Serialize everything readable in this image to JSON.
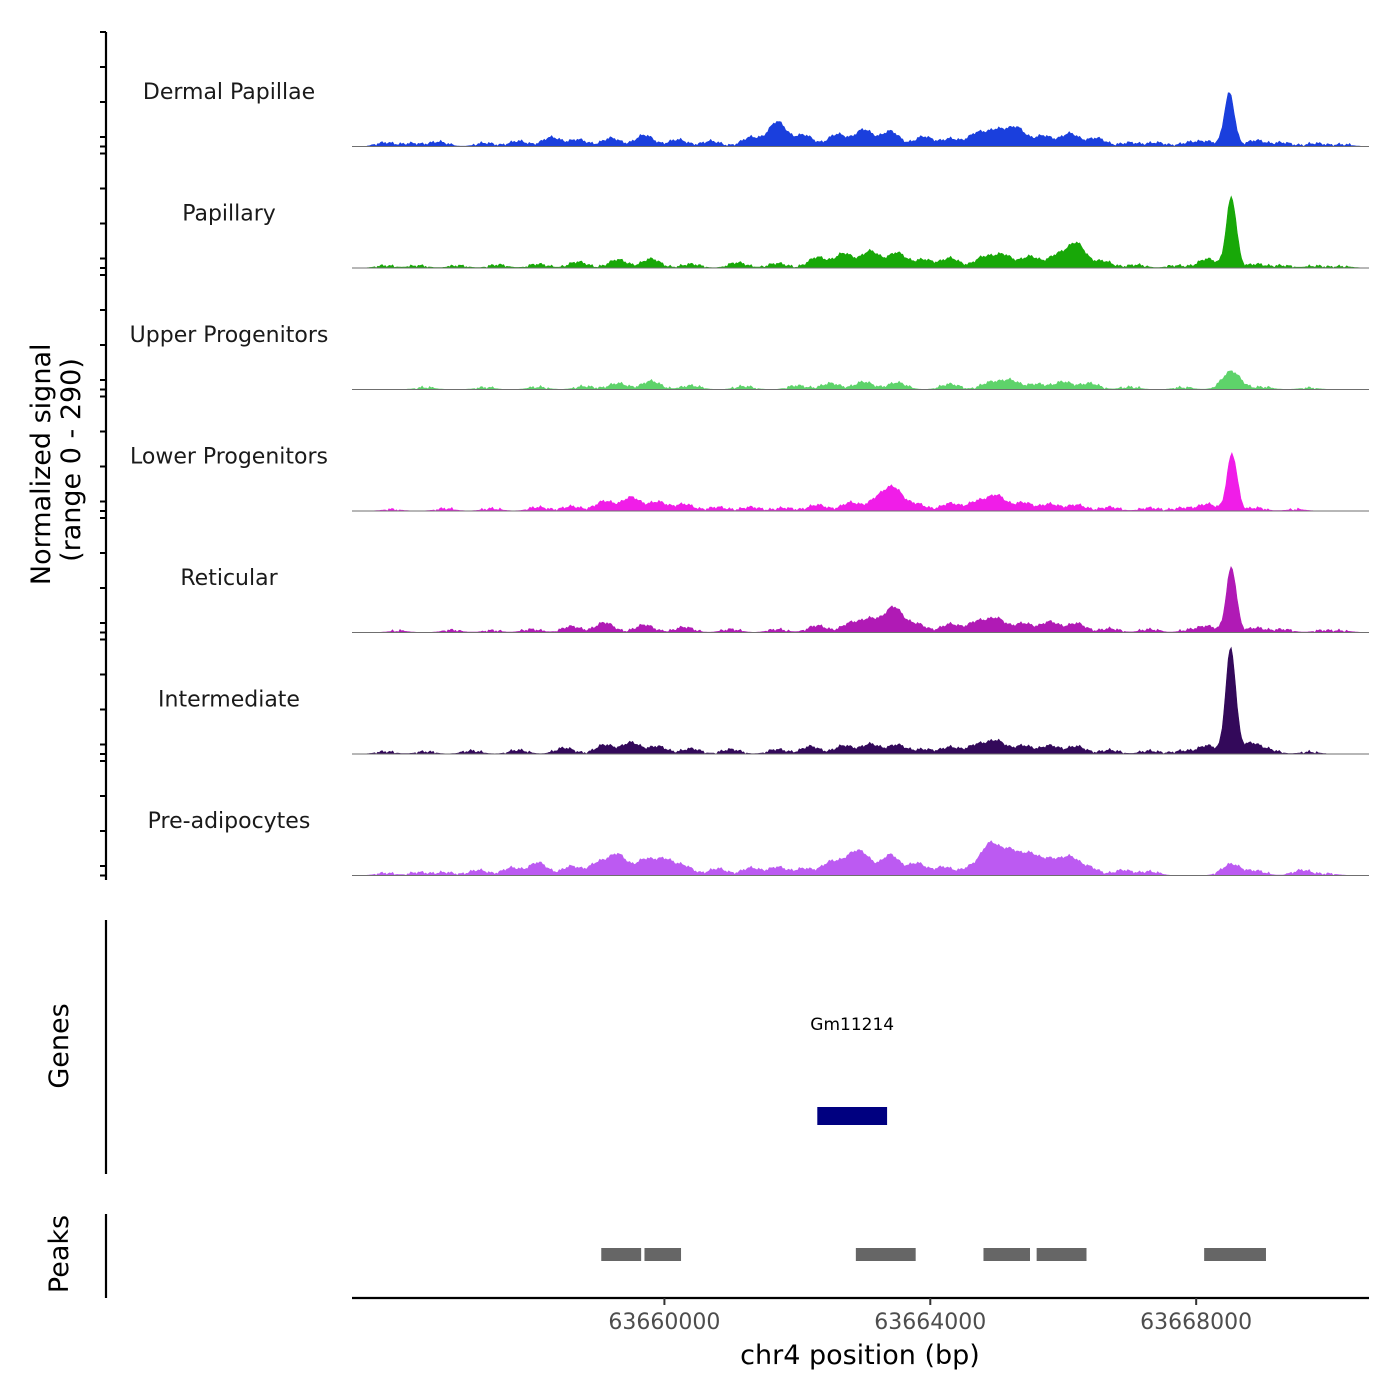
{
  "chart_data": {
    "type": "area",
    "title": "",
    "ylabel_line1": "Normalized signal",
    "ylabel_line2": "(range 0 - 290)",
    "xlabel": "chr4 position (bp)",
    "xlim": [
      63655300,
      63670600
    ],
    "x_ticks": [
      63660000,
      63664000,
      63668000
    ],
    "x_tick_labels": [
      "63660000",
      "63664000",
      "63668000"
    ],
    "ylim": [
      0,
      290
    ],
    "tracks": [
      {
        "name": "Dermal Papillae",
        "color": "#1a3fdd",
        "peaks": [
          [
            63655800,
            10
          ],
          [
            63656200,
            8
          ],
          [
            63656600,
            12
          ],
          [
            63657300,
            9
          ],
          [
            63657800,
            14
          ],
          [
            63658300,
            24
          ],
          [
            63658700,
            18
          ],
          [
            63659200,
            22
          ],
          [
            63659700,
            30
          ],
          [
            63660200,
            18
          ],
          [
            63660700,
            14
          ],
          [
            63661300,
            24
          ],
          [
            63661700,
            65
          ],
          [
            63662100,
            30
          ],
          [
            63662600,
            32
          ],
          [
            63663000,
            44
          ],
          [
            63663400,
            40
          ],
          [
            63663900,
            26
          ],
          [
            63664300,
            20
          ],
          [
            63664700,
            34
          ],
          [
            63665000,
            40
          ],
          [
            63665300,
            48
          ],
          [
            63665700,
            28
          ],
          [
            63666100,
            34
          ],
          [
            63666500,
            22
          ],
          [
            63667000,
            10
          ],
          [
            63667400,
            10
          ],
          [
            63667900,
            10
          ],
          [
            63668170,
            12
          ],
          [
            63668500,
            140
          ],
          [
            63668900,
            16
          ],
          [
            63669300,
            10
          ],
          [
            63669800,
            8
          ],
          [
            63670200,
            5
          ]
        ]
      },
      {
        "name": "Papillary",
        "color": "#18a808",
        "peaks": [
          [
            63655800,
            6
          ],
          [
            63656300,
            6
          ],
          [
            63656900,
            6
          ],
          [
            63657500,
            8
          ],
          [
            63658100,
            10
          ],
          [
            63658700,
            16
          ],
          [
            63659300,
            22
          ],
          [
            63659800,
            24
          ],
          [
            63660400,
            10
          ],
          [
            63661100,
            14
          ],
          [
            63661700,
            12
          ],
          [
            63662300,
            28
          ],
          [
            63662700,
            38
          ],
          [
            63663100,
            44
          ],
          [
            63663500,
            40
          ],
          [
            63663900,
            22
          ],
          [
            63664300,
            26
          ],
          [
            63664800,
            28
          ],
          [
            63665100,
            34
          ],
          [
            63665500,
            30
          ],
          [
            63665900,
            32
          ],
          [
            63666200,
            64
          ],
          [
            63666600,
            18
          ],
          [
            63667100,
            8
          ],
          [
            63667700,
            6
          ],
          [
            63668170,
            24
          ],
          [
            63668530,
            185
          ],
          [
            63668900,
            10
          ],
          [
            63669300,
            6
          ],
          [
            63669800,
            5
          ],
          [
            63670200,
            4
          ]
        ]
      },
      {
        "name": "Upper Progenitors",
        "color": "#5ed36a",
        "peaks": [
          [
            63656400,
            5
          ],
          [
            63657300,
            5
          ],
          [
            63658100,
            6
          ],
          [
            63658800,
            8
          ],
          [
            63659300,
            16
          ],
          [
            63659800,
            22
          ],
          [
            63660400,
            10
          ],
          [
            63661200,
            8
          ],
          [
            63662000,
            10
          ],
          [
            63662500,
            16
          ],
          [
            63663000,
            20
          ],
          [
            63663500,
            18
          ],
          [
            63664300,
            14
          ],
          [
            63664900,
            18
          ],
          [
            63665200,
            24
          ],
          [
            63665600,
            14
          ],
          [
            63666000,
            20
          ],
          [
            63666400,
            16
          ],
          [
            63667000,
            6
          ],
          [
            63667800,
            5
          ],
          [
            63668530,
            48
          ],
          [
            63669000,
            6
          ],
          [
            63669700,
            4
          ]
        ]
      },
      {
        "name": "Lower Progenitors",
        "color": "#f01de8",
        "peaks": [
          [
            63655900,
            4
          ],
          [
            63656700,
            6
          ],
          [
            63657400,
            6
          ],
          [
            63658100,
            10
          ],
          [
            63658600,
            12
          ],
          [
            63659100,
            26
          ],
          [
            63659500,
            36
          ],
          [
            63659900,
            24
          ],
          [
            63660300,
            18
          ],
          [
            63660800,
            10
          ],
          [
            63661300,
            10
          ],
          [
            63661800,
            8
          ],
          [
            63662300,
            16
          ],
          [
            63662800,
            22
          ],
          [
            63663200,
            30
          ],
          [
            63663450,
            58
          ],
          [
            63663800,
            18
          ],
          [
            63664300,
            20
          ],
          [
            63664700,
            24
          ],
          [
            63665000,
            40
          ],
          [
            63665400,
            22
          ],
          [
            63665800,
            18
          ],
          [
            63666200,
            16
          ],
          [
            63666700,
            10
          ],
          [
            63667300,
            8
          ],
          [
            63667800,
            8
          ],
          [
            63668170,
            18
          ],
          [
            63668540,
            150
          ],
          [
            63668900,
            8
          ],
          [
            63669500,
            4
          ]
        ]
      },
      {
        "name": "Reticular",
        "color": "#b01ab5",
        "peaks": [
          [
            63656000,
            4
          ],
          [
            63656800,
            6
          ],
          [
            63657400,
            5
          ],
          [
            63658000,
            8
          ],
          [
            63658600,
            16
          ],
          [
            63659100,
            26
          ],
          [
            63659700,
            20
          ],
          [
            63660300,
            14
          ],
          [
            63661000,
            8
          ],
          [
            63661700,
            8
          ],
          [
            63662300,
            18
          ],
          [
            63662800,
            24
          ],
          [
            63663100,
            34
          ],
          [
            63663450,
            66
          ],
          [
            63663800,
            22
          ],
          [
            63664300,
            22
          ],
          [
            63664700,
            28
          ],
          [
            63665000,
            36
          ],
          [
            63665400,
            24
          ],
          [
            63665800,
            28
          ],
          [
            63666200,
            24
          ],
          [
            63666700,
            10
          ],
          [
            63667300,
            8
          ],
          [
            63667900,
            6
          ],
          [
            63668170,
            16
          ],
          [
            63668530,
            170
          ],
          [
            63668900,
            12
          ],
          [
            63669300,
            8
          ],
          [
            63669900,
            5
          ],
          [
            63670200,
            4
          ]
        ]
      },
      {
        "name": "Intermediate",
        "color": "#33095a",
        "peaks": [
          [
            63655800,
            6
          ],
          [
            63656400,
            6
          ],
          [
            63657100,
            8
          ],
          [
            63657800,
            10
          ],
          [
            63658500,
            16
          ],
          [
            63659100,
            24
          ],
          [
            63659500,
            30
          ],
          [
            63659900,
            20
          ],
          [
            63660400,
            14
          ],
          [
            63661000,
            12
          ],
          [
            63661700,
            12
          ],
          [
            63662200,
            20
          ],
          [
            63662700,
            22
          ],
          [
            63663100,
            26
          ],
          [
            63663500,
            24
          ],
          [
            63663900,
            12
          ],
          [
            63664300,
            18
          ],
          [
            63664700,
            24
          ],
          [
            63665000,
            34
          ],
          [
            63665400,
            22
          ],
          [
            63665800,
            22
          ],
          [
            63666200,
            20
          ],
          [
            63666700,
            10
          ],
          [
            63667300,
            8
          ],
          [
            63667800,
            8
          ],
          [
            63668170,
            22
          ],
          [
            63668520,
            275
          ],
          [
            63668820,
            28
          ],
          [
            63669100,
            10
          ],
          [
            63669700,
            5
          ]
        ]
      },
      {
        "name": "Pre-adipocytes",
        "color": "#bc5af2",
        "peaks": [
          [
            63655800,
            6
          ],
          [
            63656300,
            8
          ],
          [
            63656700,
            8
          ],
          [
            63657200,
            14
          ],
          [
            63657700,
            20
          ],
          [
            63658100,
            34
          ],
          [
            63658600,
            24
          ],
          [
            63659000,
            32
          ],
          [
            63659300,
            54
          ],
          [
            63659700,
            40
          ],
          [
            63660000,
            40
          ],
          [
            63660300,
            24
          ],
          [
            63660800,
            18
          ],
          [
            63661300,
            20
          ],
          [
            63661700,
            22
          ],
          [
            63662100,
            18
          ],
          [
            63662500,
            34
          ],
          [
            63662800,
            40
          ],
          [
            63663000,
            46
          ],
          [
            63663400,
            54
          ],
          [
            63663800,
            32
          ],
          [
            63664200,
            22
          ],
          [
            63664600,
            20
          ],
          [
            63664900,
            80
          ],
          [
            63665200,
            60
          ],
          [
            63665500,
            52
          ],
          [
            63665800,
            38
          ],
          [
            63666100,
            46
          ],
          [
            63666400,
            20
          ],
          [
            63666900,
            14
          ],
          [
            63667300,
            10
          ],
          [
            63668530,
            30
          ],
          [
            63668900,
            12
          ],
          [
            63669600,
            14
          ],
          [
            63670000,
            4
          ]
        ]
      }
    ],
    "genes_track": {
      "title": "Genes",
      "genes": [
        {
          "name": "Gm11214",
          "start": 63662300,
          "end": 63663350,
          "color": "#000080"
        }
      ]
    },
    "peaks_track": {
      "title": "Peaks",
      "color": "#666666",
      "regions": [
        [
          63659050,
          63659650
        ],
        [
          63659700,
          63660250
        ],
        [
          63662880,
          63663780
        ],
        [
          63664800,
          63665500
        ],
        [
          63665600,
          63666350
        ],
        [
          63668120,
          63669050
        ]
      ]
    }
  }
}
